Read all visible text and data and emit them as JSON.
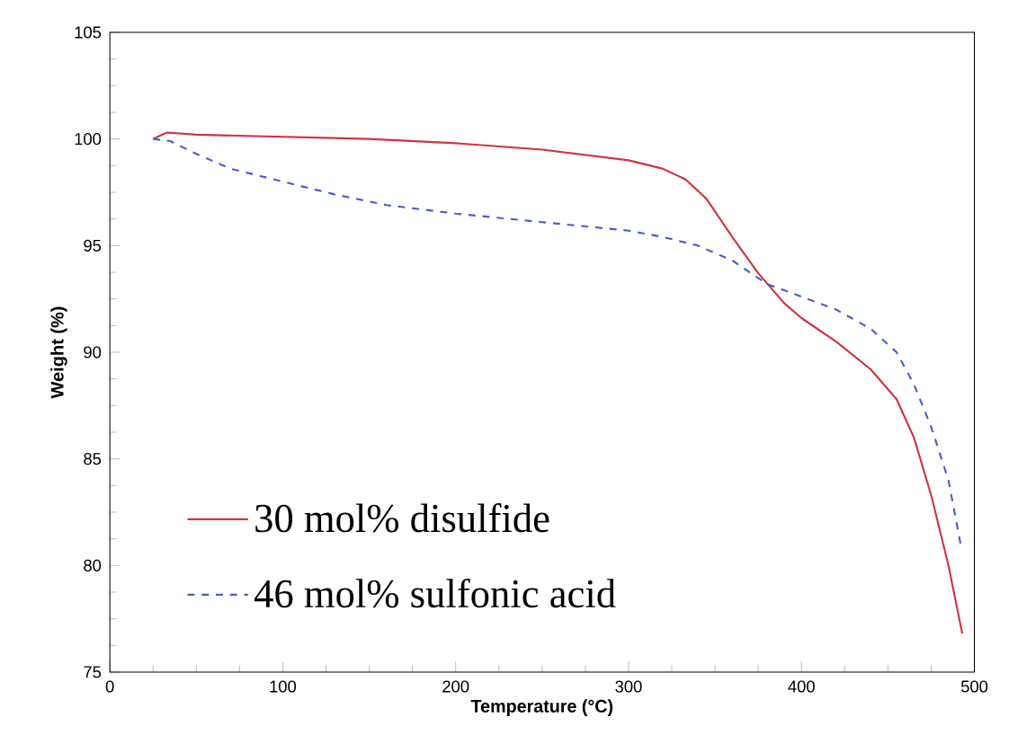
{
  "chart_data": {
    "type": "line",
    "xlabel": "Temperature (°C)",
    "ylabel": "Weight (%)",
    "xlim": [
      0,
      500
    ],
    "ylim": [
      75,
      105
    ],
    "xticks": [
      0,
      100,
      200,
      300,
      400,
      500
    ],
    "yticks": [
      75,
      80,
      85,
      90,
      95,
      100,
      105
    ],
    "grid": false,
    "legend": "bottom left",
    "series": [
      {
        "name": "30 mol% disulfide",
        "color": "#d0343c",
        "line_style": "solid",
        "x": [
          25,
          33,
          50,
          100,
          150,
          200,
          250,
          300,
          320,
          333,
          345,
          360,
          375,
          390,
          400,
          420,
          440,
          455,
          465,
          475,
          485,
          493
        ],
        "values": [
          100,
          100.3,
          100.2,
          100.1,
          100.0,
          99.8,
          99.5,
          99.0,
          98.6,
          98.1,
          97.2,
          95.4,
          93.7,
          92.3,
          91.6,
          90.5,
          89.2,
          87.8,
          86,
          83.3,
          80,
          76.8
        ]
      },
      {
        "name": "46 mol% sulfonic acid",
        "color": "#4a5ccc",
        "line_style": "dashed",
        "x": [
          25,
          35,
          50,
          70,
          85,
          100,
          130,
          160,
          200,
          250,
          300,
          320,
          340,
          360,
          380,
          400,
          420,
          440,
          455,
          465,
          475,
          485,
          492
        ],
        "values": [
          100,
          99.9,
          99.3,
          98.6,
          98.3,
          98.0,
          97.4,
          96.9,
          96.5,
          96.1,
          95.7,
          95.4,
          95.0,
          94.3,
          93.2,
          92.6,
          92.0,
          91.1,
          90.0,
          88.5,
          86.5,
          84,
          81
        ]
      }
    ]
  }
}
